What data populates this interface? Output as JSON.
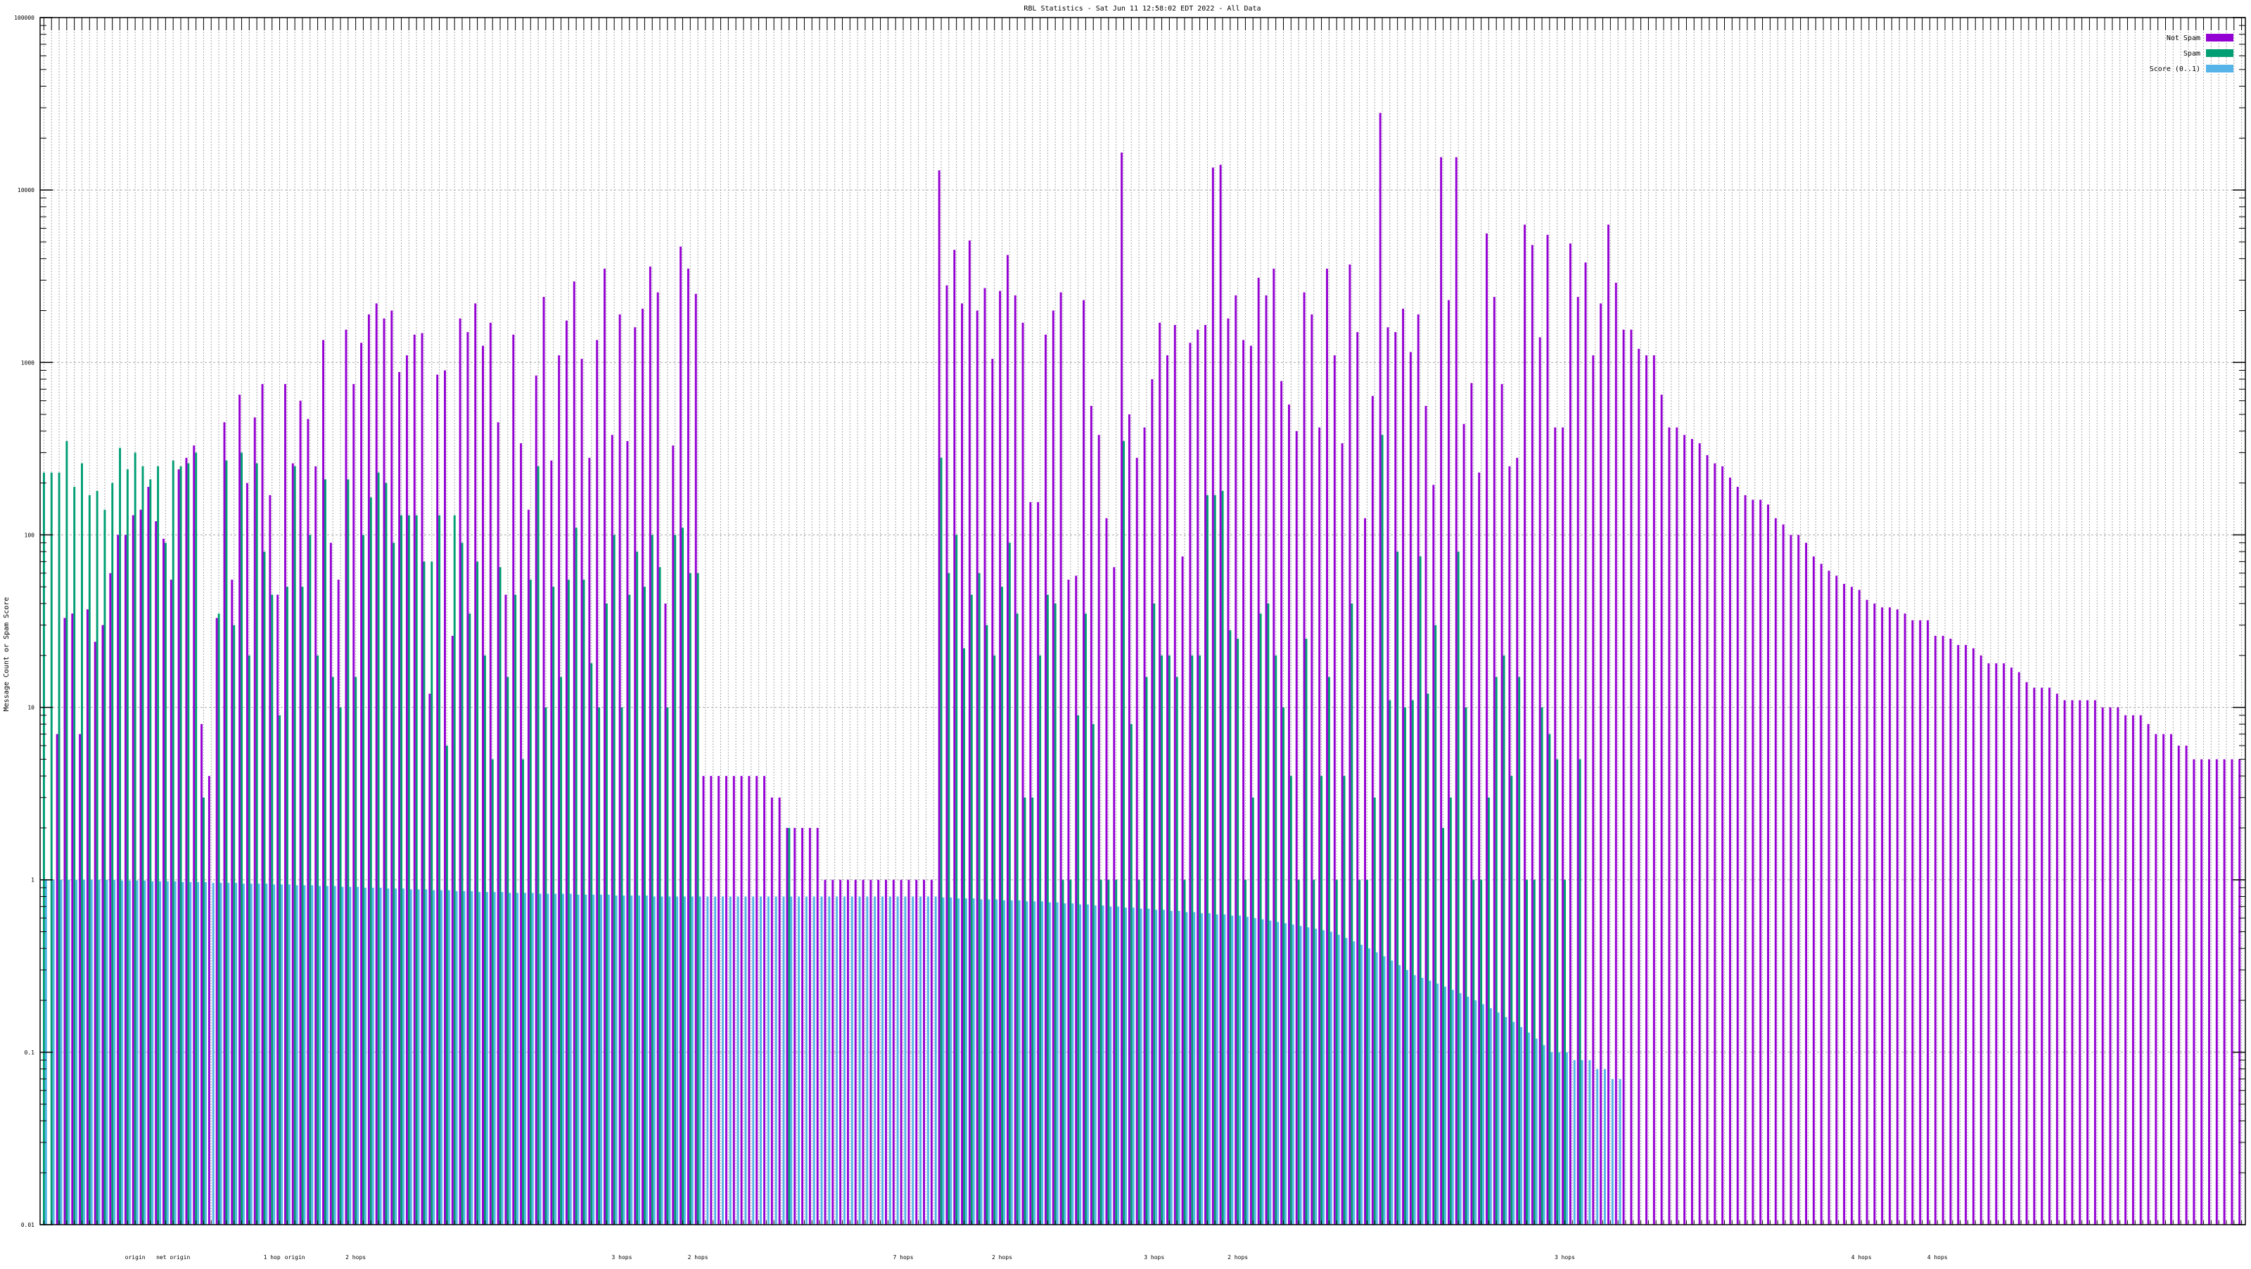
{
  "chart_data": {
    "type": "bar",
    "title": "RBL Statistics - Sat Jun 11 12:58:02 EDT 2022 - All Data",
    "ylabel": "Message Count or Spam Score",
    "xlabel": "",
    "yscale": "log",
    "ylim": [
      0.01,
      100000
    ],
    "y_ticks": [
      "100000",
      "10000",
      "1000",
      "100",
      "10",
      "1",
      "0.1",
      "0.01"
    ],
    "y_tick_values": [
      100000,
      10000,
      1000,
      100,
      10,
      1,
      0.1,
      0.01
    ],
    "grid": true,
    "legend_position": "top-right",
    "colors": {
      "not_spam": "#9400d3",
      "spam": "#009e73",
      "score": "#56b4e9"
    },
    "series": [
      {
        "name": "Not Spam",
        "key": "not_spam",
        "values": [
          0,
          0,
          7,
          33,
          35,
          7,
          37,
          24,
          30,
          60,
          100,
          100,
          130,
          140,
          190,
          120,
          95,
          55,
          240,
          280,
          330,
          8,
          4,
          33,
          450,
          55,
          650,
          200,
          480,
          750,
          170,
          45,
          750,
          260,
          600,
          470,
          250,
          1350,
          90,
          55,
          1550,
          750,
          1300,
          1900,
          2200,
          1800,
          2000,
          880,
          1100,
          1450,
          1480,
          12,
          850,
          900,
          26,
          1800,
          1500,
          2200,
          1250,
          1700,
          450,
          45,
          1450,
          340,
          140,
          840,
          2400,
          270,
          1100,
          1750,
          2950,
          1050,
          280,
          1350,
          3500,
          380,
          1900,
          350,
          1600,
          2050,
          3600,
          2550,
          40,
          330,
          4700,
          3500,
          2500,
          4,
          4,
          4,
          4,
          4,
          4,
          4,
          4,
          4,
          3,
          3,
          2,
          2,
          2,
          2,
          2,
          1,
          1,
          1,
          1,
          1,
          1,
          1,
          1,
          1,
          1,
          1,
          1,
          1,
          1,
          1,
          13000,
          2800,
          4500,
          2200,
          5100,
          2000,
          2700,
          1050,
          2600,
          4200,
          2450,
          1700,
          155,
          155,
          1450,
          2000,
          2550,
          55,
          58,
          2300,
          560,
          380,
          125,
          65,
          16500,
          500,
          280,
          420,
          800,
          1700,
          1100,
          1650,
          75,
          1300,
          1550,
          1650,
          13500,
          14000,
          1800,
          2450,
          1350,
          1250,
          3100,
          2450,
          3500,
          780,
          570,
          400,
          2550,
          1900,
          420,
          3500,
          1100,
          340,
          3700,
          1500,
          125,
          640,
          28000,
          1600,
          1500,
          2050,
          1150,
          1900,
          560,
          195,
          15500,
          2300,
          15500,
          440,
          760,
          230,
          5600,
          2400,
          750,
          250,
          280,
          6300,
          4800,
          1400,
          5500,
          420,
          420,
          4900,
          2400,
          3800,
          1100,
          2200,
          6300,
          2900,
          1550,
          1550,
          1200,
          1100,
          1100,
          650,
          420,
          420,
          380,
          360,
          340,
          290,
          260,
          250,
          215,
          190,
          170,
          160,
          160,
          150,
          125,
          115,
          100,
          100,
          90,
          75,
          68,
          62,
          58,
          52,
          50,
          48,
          42,
          40,
          38,
          38,
          37,
          35,
          32,
          32,
          32,
          26,
          26,
          25,
          23,
          23,
          22,
          20,
          18,
          18,
          18,
          17,
          16,
          14,
          13,
          13,
          13,
          12,
          11,
          11,
          11,
          11,
          11,
          10,
          10,
          10,
          9,
          9,
          9,
          8,
          7,
          7,
          7,
          6,
          6,
          5,
          5,
          5,
          5,
          5,
          5,
          5
        ]
      },
      {
        "name": "Spam",
        "key": "spam",
        "values": [
          230,
          230,
          230,
          350,
          190,
          260,
          170,
          180,
          140,
          200,
          320,
          240,
          300,
          250,
          210,
          250,
          90,
          270,
          250,
          260,
          300,
          3,
          0,
          35,
          270,
          30,
          300,
          20,
          260,
          80,
          45,
          9,
          50,
          250,
          50,
          100,
          20,
          210,
          15,
          10,
          210,
          15,
          100,
          165,
          230,
          200,
          90,
          130,
          130,
          130,
          70,
          70,
          130,
          6,
          130,
          90,
          35,
          70,
          20,
          5,
          65,
          15,
          45,
          5,
          55,
          250,
          10,
          50,
          15,
          55,
          110,
          55,
          18,
          10,
          40,
          100,
          10,
          45,
          80,
          50,
          100,
          65,
          10,
          100,
          110,
          60,
          60,
          0,
          0,
          0,
          0,
          0,
          0,
          0,
          0,
          0,
          0,
          0,
          2,
          0,
          0,
          0,
          0,
          0,
          0,
          0,
          0,
          0,
          0,
          0,
          0,
          0,
          0,
          0,
          0,
          0,
          0,
          0,
          280,
          60,
          100,
          22,
          45,
          60,
          30,
          20,
          50,
          90,
          35,
          3,
          3,
          20,
          45,
          40,
          1,
          1,
          9,
          35,
          8,
          1,
          1,
          1,
          350,
          8,
          1,
          15,
          40,
          20,
          20,
          15,
          1,
          20,
          20,
          170,
          170,
          180,
          28,
          25,
          1,
          3,
          35,
          40,
          20,
          10,
          4,
          1,
          25,
          1,
          4,
          15,
          1,
          4,
          40,
          1,
          1,
          3,
          380,
          11,
          80,
          10,
          11,
          75,
          12,
          30,
          2,
          3,
          80,
          10,
          1,
          1,
          3,
          15,
          20,
          4,
          15,
          1,
          1,
          10,
          7,
          5,
          1,
          0,
          5,
          0,
          0,
          0,
          0,
          0
        ]
      },
      {
        "name": "Score (0..1)",
        "key": "score",
        "values": [
          1,
          1,
          1,
          1,
          1,
          1,
          1,
          1,
          1,
          1,
          0.99,
          0.99,
          0.99,
          0.99,
          0.98,
          0.98,
          0.98,
          0.98,
          0.97,
          0.97,
          0.97,
          0.97,
          0.96,
          0.96,
          0.96,
          0.96,
          0.95,
          0.95,
          0.95,
          0.95,
          0.94,
          0.94,
          0.94,
          0.93,
          0.93,
          0.93,
          0.92,
          0.92,
          0.92,
          0.91,
          0.91,
          0.91,
          0.9,
          0.9,
          0.9,
          0.89,
          0.89,
          0.89,
          0.88,
          0.88,
          0.88,
          0.87,
          0.87,
          0.87,
          0.86,
          0.86,
          0.86,
          0.85,
          0.85,
          0.85,
          0.85,
          0.84,
          0.84,
          0.84,
          0.84,
          0.83,
          0.83,
          0.83,
          0.83,
          0.83,
          0.82,
          0.82,
          0.82,
          0.82,
          0.82,
          0.81,
          0.81,
          0.81,
          0.81,
          0.81,
          0.8,
          0.8,
          0.8,
          0.8,
          0.8,
          0.8,
          0.8,
          0.8,
          0.8,
          0.8,
          0.8,
          0.8,
          0.8,
          0.8,
          0.8,
          0.8,
          0.8,
          0.8,
          0.8,
          0.8,
          0.8,
          0.8,
          0.8,
          0.8,
          0.8,
          0.8,
          0.8,
          0.8,
          0.8,
          0.8,
          0.8,
          0.8,
          0.8,
          0.8,
          0.8,
          0.8,
          0.8,
          0.8,
          0.79,
          0.79,
          0.78,
          0.78,
          0.78,
          0.77,
          0.77,
          0.77,
          0.76,
          0.76,
          0.76,
          0.75,
          0.75,
          0.75,
          0.74,
          0.74,
          0.73,
          0.73,
          0.72,
          0.72,
          0.71,
          0.71,
          0.7,
          0.7,
          0.69,
          0.69,
          0.68,
          0.68,
          0.67,
          0.67,
          0.66,
          0.66,
          0.65,
          0.65,
          0.64,
          0.64,
          0.63,
          0.63,
          0.62,
          0.62,
          0.61,
          0.6,
          0.59,
          0.58,
          0.57,
          0.56,
          0.55,
          0.54,
          0.53,
          0.52,
          0.51,
          0.5,
          0.48,
          0.46,
          0.44,
          0.42,
          0.4,
          0.38,
          0.36,
          0.34,
          0.32,
          0.3,
          0.28,
          0.27,
          0.26,
          0.25,
          0.24,
          0.23,
          0.22,
          0.21,
          0.2,
          0.19,
          0.18,
          0.17,
          0.16,
          0.15,
          0.14,
          0.13,
          0.12,
          0.11,
          0.1,
          0.1,
          0.1,
          0.09,
          0.09,
          0.09,
          0.08,
          0.08,
          0.07,
          0.07
        ]
      }
    ],
    "group_labels": [
      {
        "group": 12,
        "label": "origin"
      },
      {
        "group": 17,
        "label": "net origin"
      },
      {
        "group": 30,
        "label": "1 hop"
      },
      {
        "group": 33,
        "label": "origin"
      },
      {
        "group": 41,
        "label": "2 hops"
      },
      {
        "group": 76,
        "label": "3 hops"
      },
      {
        "group": 86,
        "label": "2 hops"
      },
      {
        "group": 113,
        "label": "7 hops"
      },
      {
        "group": 126,
        "label": "2 hops"
      },
      {
        "group": 146,
        "label": "3 hops"
      },
      {
        "group": 157,
        "label": "2 hops"
      },
      {
        "group": 200,
        "label": "3 hops"
      },
      {
        "group": 239,
        "label": "4 hops"
      },
      {
        "group": 249,
        "label": "4 hops"
      }
    ]
  }
}
